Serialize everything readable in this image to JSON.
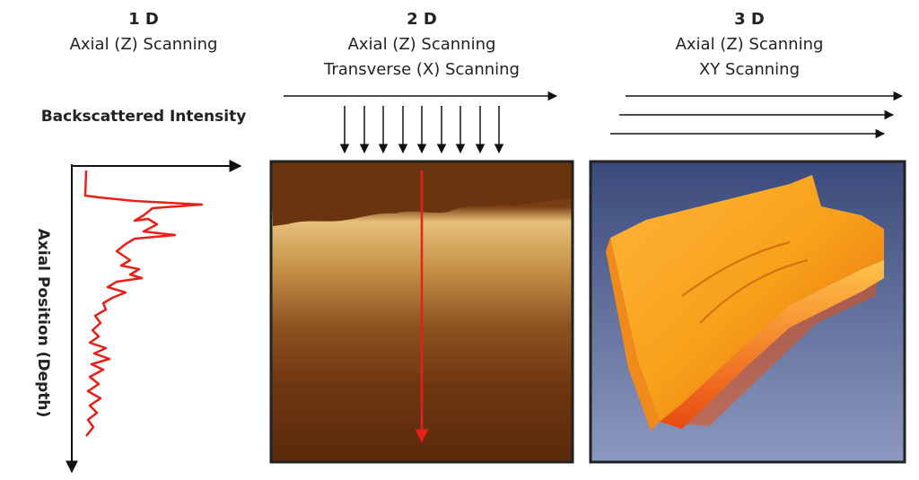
{
  "panels": [
    {
      "title": "1 D",
      "lines": [
        "Axial (Z) Scanning"
      ],
      "x_axis_label": "Backscattered Intensity",
      "y_axis_label": "Axial Position (Depth)"
    },
    {
      "title": "2 D",
      "lines": [
        "Axial (Z) Scanning",
        "Transverse (X) Scanning"
      ]
    },
    {
      "title": "3 D",
      "lines": [
        "Axial (Z) Scanning",
        "XY Scanning"
      ]
    }
  ]
}
